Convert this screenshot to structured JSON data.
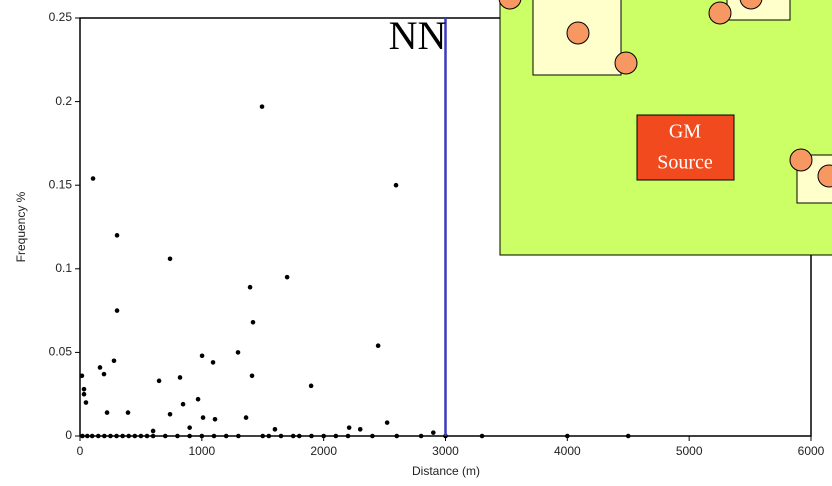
{
  "chart_data": {
    "type": "scatter",
    "x_label": "Distance (m)",
    "y_label": "Frequency %",
    "x": [
      107,
      1494,
      2594,
      304,
      739,
      1700,
      1396,
      304,
      1420,
      2447,
      1297,
      1002,
      1092,
      279,
      164,
      197,
      16,
      1412,
      821,
      649,
      1897,
      33,
      33,
      969,
      846,
      49,
      222,
      394,
      739,
      1010,
      1363,
      1108,
      2521,
      2209,
      2300,
      1600,
      600,
      900,
      2900,
      20,
      60,
      100,
      150,
      200,
      250,
      300,
      350,
      400,
      450,
      500,
      550,
      600,
      700,
      800,
      900,
      1000,
      1100,
      1200,
      1300,
      1500,
      1550,
      1650,
      1750,
      1800,
      1900,
      2000,
      2100,
      2200,
      2400,
      2600,
      2800,
      3000,
      3300,
      4000,
      4500
    ],
    "values": [
      0.154,
      0.197,
      0.15,
      0.12,
      0.106,
      0.095,
      0.089,
      0.075,
      0.068,
      0.054,
      0.05,
      0.048,
      0.044,
      0.045,
      0.041,
      0.037,
      0.036,
      0.036,
      0.035,
      0.033,
      0.03,
      0.028,
      0.025,
      0.022,
      0.019,
      0.02,
      0.014,
      0.014,
      0.013,
      0.011,
      0.011,
      0.01,
      0.008,
      0.005,
      0.004,
      0.004,
      0.003,
      0.005,
      0.002,
      0,
      0,
      0,
      0,
      0,
      0,
      0,
      0,
      0,
      0,
      0,
      0,
      0,
      0,
      0,
      0,
      0,
      0,
      0,
      0,
      0,
      0,
      0,
      0,
      0,
      0,
      0,
      0,
      0,
      0,
      0,
      0,
      0,
      0,
      0,
      0
    ],
    "color": "#000000",
    "xlim": [
      0,
      6000
    ],
    "xticks": [
      0,
      1000,
      2000,
      3000,
      4000,
      5000,
      6000
    ],
    "ylim": [
      0,
      0.25
    ],
    "yticks": [
      0,
      0.05,
      0.1,
      0.15,
      0.2,
      0.25
    ],
    "grid": false,
    "vline": {
      "x": 3000,
      "label": "NN",
      "color": "#3b3bbf"
    }
  },
  "inset": {
    "label": [
      "GM",
      "Source"
    ]
  }
}
